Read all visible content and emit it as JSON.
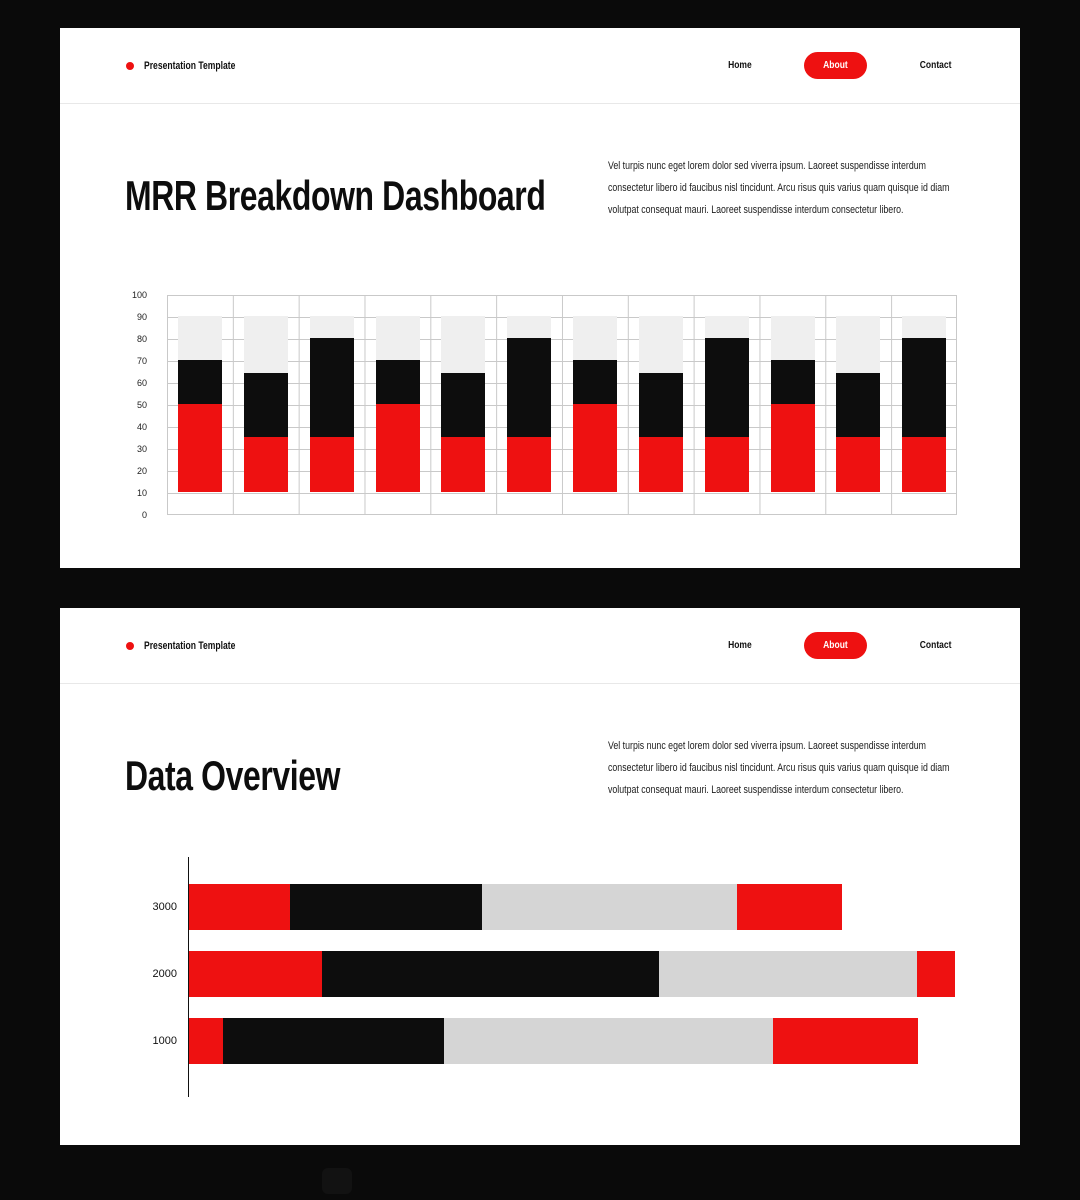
{
  "colors": {
    "background": "#0a0a0a",
    "slide_bg": "#ffffff",
    "accent_red": "#ee1111",
    "bar_black": "#0d0d0d",
    "bar_gray_light": "#efefef",
    "bar_gray_dark": "#d5d5d5",
    "grid_line": "#c9c9c9"
  },
  "header": {
    "brand": "Presentation Template",
    "nav": [
      {
        "label": "Home",
        "active": false
      },
      {
        "label": "About",
        "active": true
      },
      {
        "label": "Contact",
        "active": false
      }
    ]
  },
  "slide1": {
    "title": "MRR Breakdown Dashboard",
    "paragraph": "Vel turpis nunc eget lorem dolor sed viverra ipsum. Laoreet suspendisse interdum consectetur libero id faucibus nisl tincidunt. Arcu risus quis varius quam quisque id diam volutpat consequat mauri. Laoreet suspendisse interdum consectetur libero."
  },
  "slide2": {
    "title": "Data Overview",
    "paragraph": "Vel turpis nunc eget lorem dolor sed viverra ipsum. Laoreet suspendisse interdum consectetur libero id faucibus nisl tincidunt. Arcu risus quis varius quam quisque id diam volutpat consequat mauri. Laoreet suspendisse interdum consectetur libero."
  },
  "chart_data": [
    {
      "type": "bar",
      "orientation": "vertical",
      "stacked": true,
      "title": "MRR Breakdown Dashboard",
      "ylim": [
        0,
        100
      ],
      "yticks": [
        0,
        10,
        20,
        30,
        40,
        50,
        60,
        70,
        80,
        90,
        100
      ],
      "grid": true,
      "legend": "none",
      "bar_count": 12,
      "baseline": 10,
      "palette": {
        "red": "#ee1111",
        "black": "#0d0d0d",
        "gray": "#efefef"
      },
      "series": [
        {
          "name": "red",
          "tops": [
            50,
            35,
            35,
            50,
            35,
            35,
            50,
            35,
            35,
            50,
            35,
            35
          ]
        },
        {
          "name": "black",
          "tops": [
            70,
            64,
            80,
            70,
            64,
            80,
            70,
            64,
            80,
            70,
            64,
            80
          ]
        },
        {
          "name": "gray",
          "tops": [
            90,
            90,
            90,
            90,
            90,
            90,
            90,
            90,
            90,
            90,
            90,
            90
          ]
        }
      ]
    },
    {
      "type": "bar",
      "orientation": "horizontal",
      "stacked": true,
      "title": "Data Overview",
      "categories": [
        "3000",
        "2000",
        "1000"
      ],
      "legend": "none",
      "grid": false,
      "palette": {
        "red": "#ee1111",
        "black": "#0d0d0d",
        "gray": "#d5d5d5"
      },
      "rows": [
        {
          "label": "3000",
          "segments": [
            {
              "color": "red",
              "pct": 13.2
            },
            {
              "color": "black",
              "pct": 25.0
            },
            {
              "color": "gray",
              "pct": 33.4
            },
            {
              "color": "red",
              "pct": 13.6
            }
          ]
        },
        {
          "label": "2000",
          "segments": [
            {
              "color": "red",
              "pct": 17.4
            },
            {
              "color": "black",
              "pct": 44.0
            },
            {
              "color": "gray",
              "pct": 33.7
            },
            {
              "color": "red",
              "pct": 4.9
            }
          ]
        },
        {
          "label": "1000",
          "segments": [
            {
              "color": "red",
              "pct": 4.4
            },
            {
              "color": "black",
              "pct": 28.9
            },
            {
              "color": "gray",
              "pct": 42.9
            },
            {
              "color": "red",
              "pct": 19.0
            }
          ]
        }
      ]
    }
  ]
}
